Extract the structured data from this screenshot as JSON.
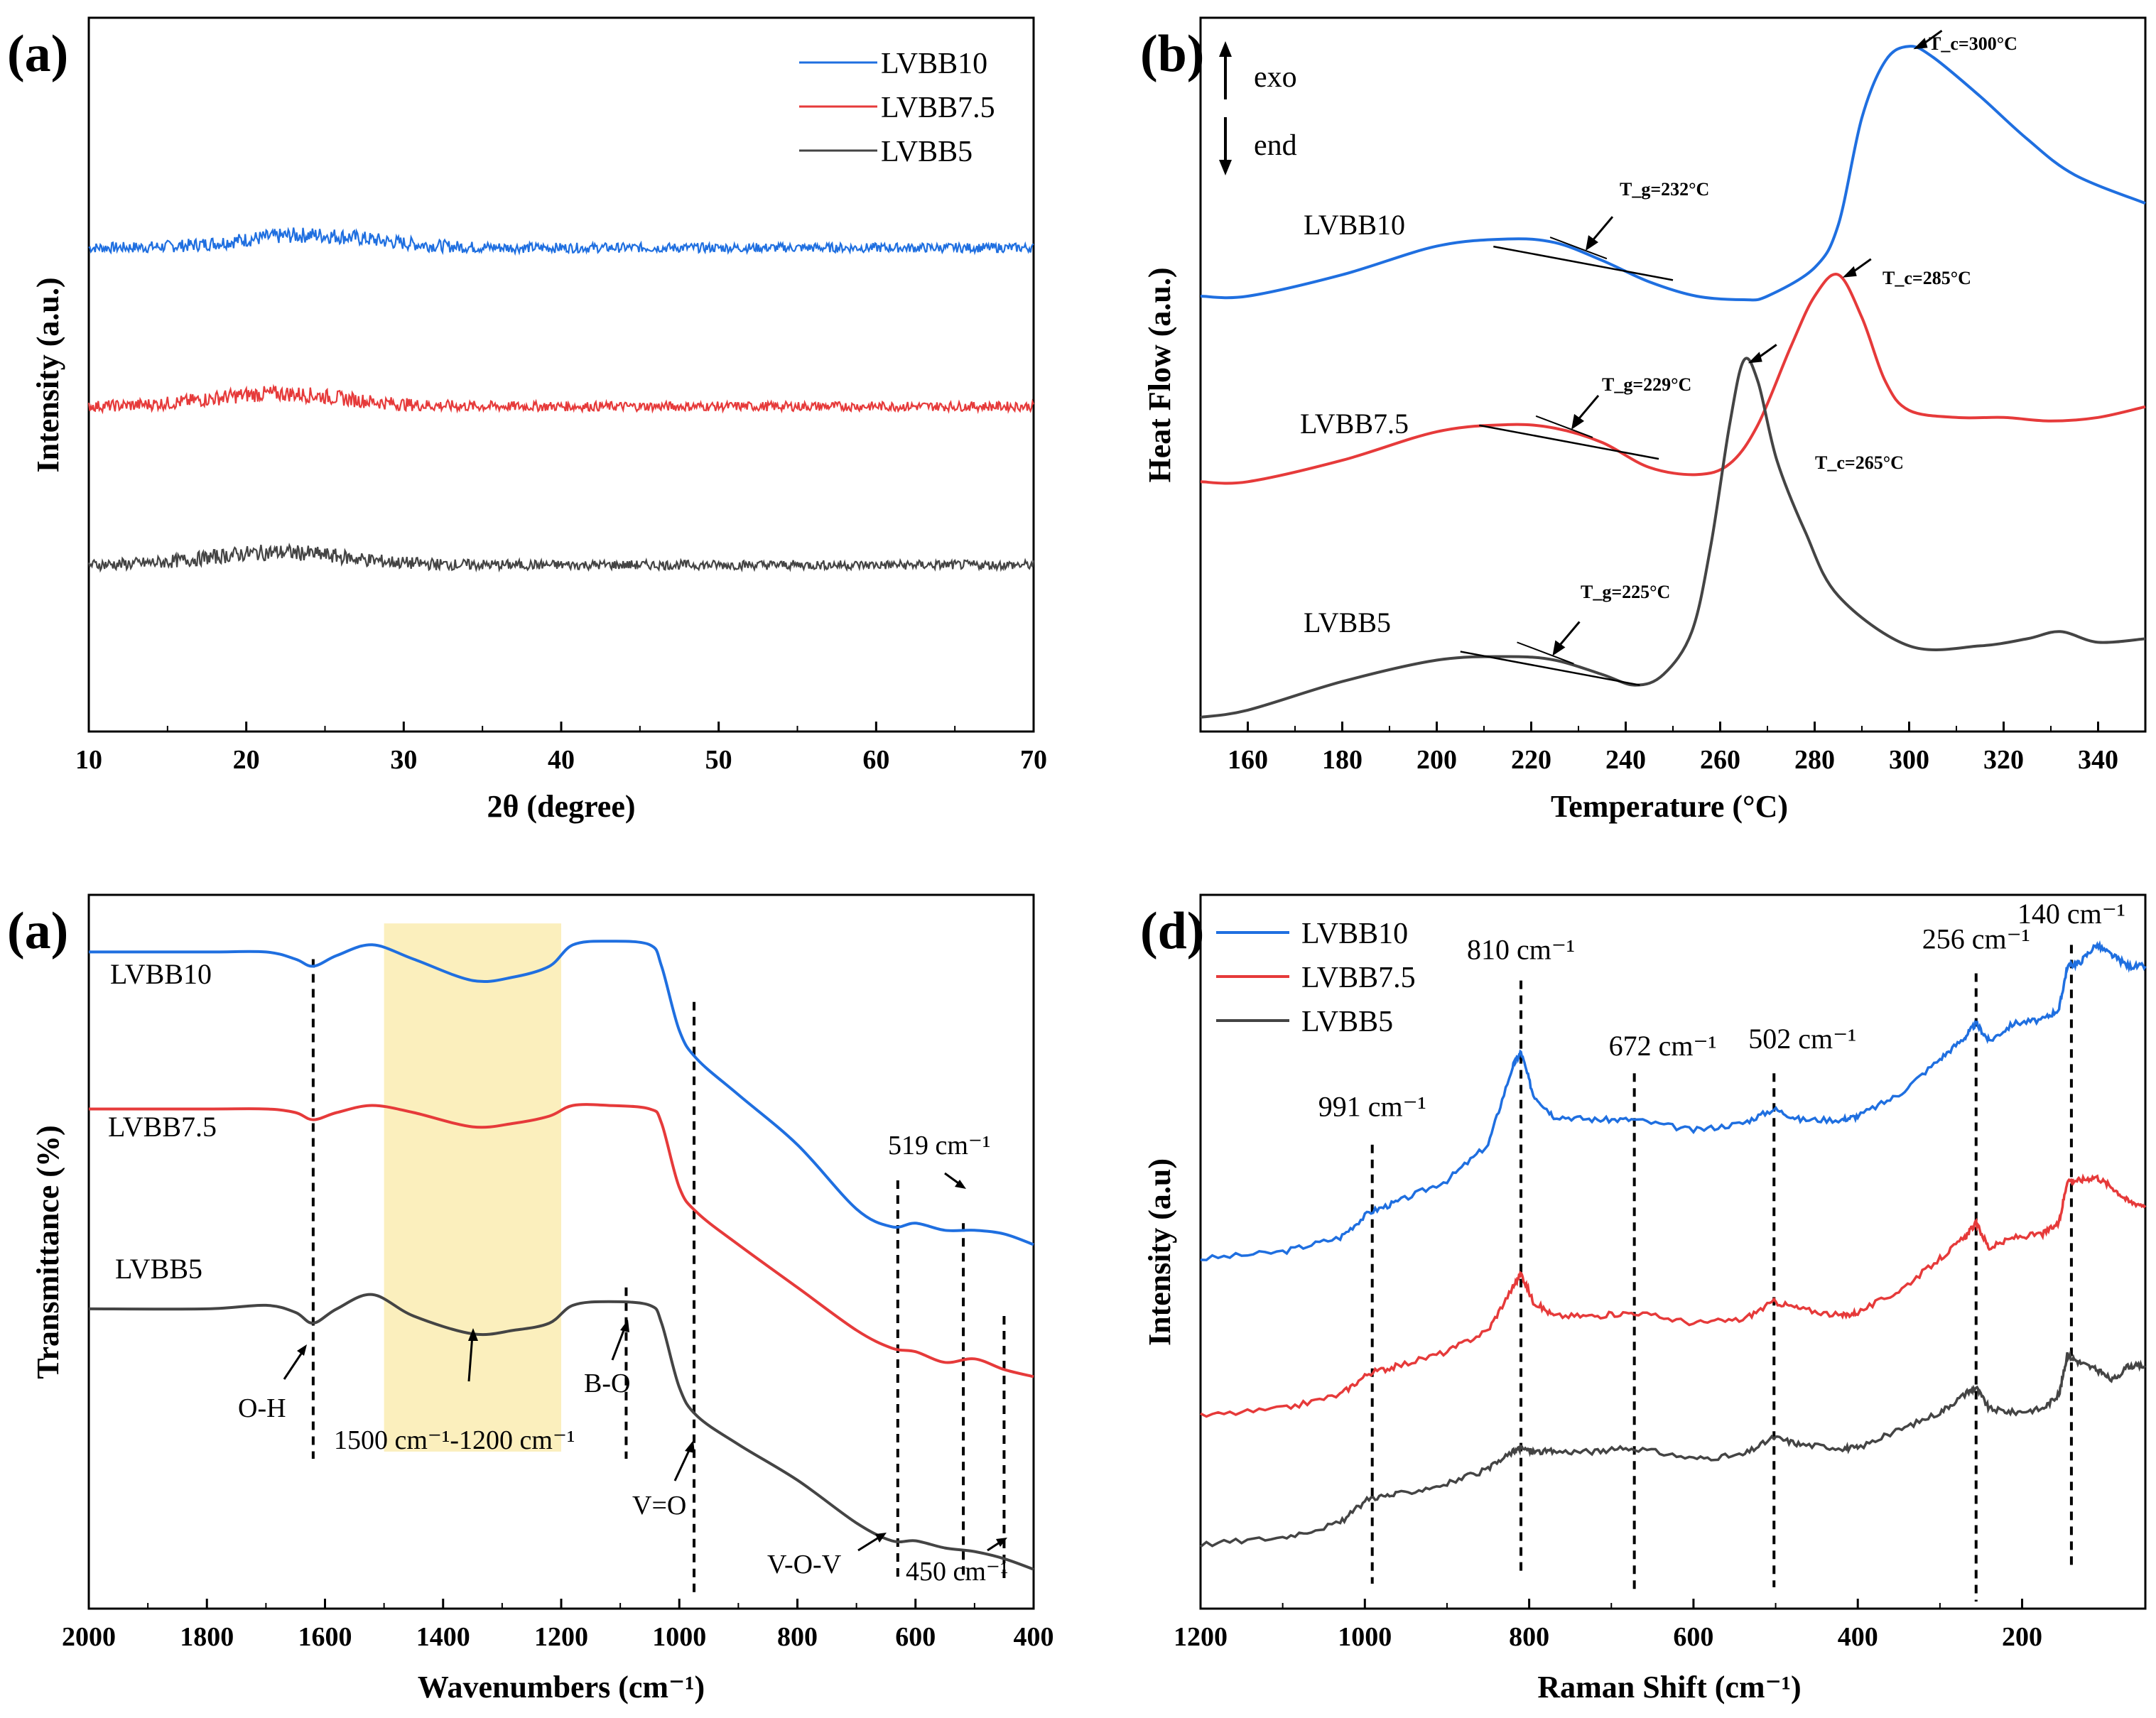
{
  "colors": {
    "LVBB10": "#1f6fe0",
    "LVBB7.5": "#e63a3a",
    "LVBB5": "#444444",
    "band": "#fbefbd"
  },
  "chart_data": [
    {
      "type": "line",
      "panel": "(a)",
      "title": "",
      "xlabel": "2θ (degree)",
      "ylabel": "Intensity (a.u.)",
      "xlim": [
        10,
        70
      ],
      "ylim": [
        0,
        4.5
      ],
      "xticks": [
        10,
        20,
        30,
        40,
        50,
        60,
        70
      ],
      "xtick_labels": [
        "10",
        "20",
        "30",
        "40",
        "50",
        "60",
        "70"
      ],
      "legend": [
        "LVBB10",
        "LVBB7.5",
        "LVBB5"
      ],
      "legend_position": "top-right",
      "series": [
        {
          "name": "LVBB10",
          "baseline": 3.05,
          "bump": 0.08,
          "bump_center": 24,
          "noise": 0.05
        },
        {
          "name": "LVBB7.5",
          "baseline": 2.05,
          "bump": 0.08,
          "bump_center": 22,
          "noise": 0.05
        },
        {
          "name": "LVBB5",
          "baseline": 1.05,
          "bump": 0.08,
          "bump_center": 22,
          "noise": 0.05
        }
      ]
    },
    {
      "type": "line",
      "panel": "(b)",
      "xlabel": "Temperature (°C)",
      "ylabel": "Heat Flow (a.u.)",
      "xlim": [
        150,
        350
      ],
      "ylim": [
        0,
        10
      ],
      "xticks": [
        160,
        180,
        200,
        220,
        240,
        260,
        280,
        300,
        320,
        340
      ],
      "xtick_labels": [
        "160",
        "180",
        "200",
        "220",
        "240",
        "260",
        "280",
        "300",
        "320",
        "340"
      ],
      "exo_label": "exo",
      "end_label": "end",
      "series": [
        {
          "name": "LVBB10",
          "x": [
            150,
            160,
            180,
            200,
            215,
            225,
            235,
            245,
            255,
            265,
            270,
            280,
            285,
            290,
            295,
            300,
            305,
            315,
            325,
            335,
            350
          ],
          "y": [
            6.1,
            6.1,
            6.4,
            6.8,
            6.9,
            6.85,
            6.6,
            6.3,
            6.1,
            6.05,
            6.1,
            6.5,
            7.1,
            8.6,
            9.4,
            9.6,
            9.45,
            8.9,
            8.3,
            7.8,
            7.4
          ]
        },
        {
          "name": "LVBB7.5",
          "x": [
            150,
            160,
            180,
            200,
            215,
            225,
            235,
            245,
            255,
            262,
            268,
            275,
            280,
            285,
            290,
            295,
            300,
            310,
            320,
            330,
            340,
            350
          ],
          "y": [
            3.5,
            3.5,
            3.8,
            4.2,
            4.3,
            4.25,
            4.05,
            3.7,
            3.6,
            3.75,
            4.3,
            5.4,
            6.1,
            6.4,
            5.8,
            4.9,
            4.5,
            4.4,
            4.4,
            4.35,
            4.4,
            4.55
          ]
        },
        {
          "name": "LVBB5",
          "x": [
            150,
            160,
            180,
            200,
            215,
            225,
            235,
            242,
            248,
            254,
            258,
            262,
            265,
            268,
            272,
            278,
            285,
            300,
            315,
            325,
            332,
            340,
            350
          ],
          "y": [
            0.2,
            0.3,
            0.7,
            1.0,
            1.05,
            1.0,
            0.8,
            0.65,
            0.8,
            1.4,
            2.6,
            4.3,
            5.2,
            4.9,
            3.8,
            2.8,
            1.9,
            1.2,
            1.2,
            1.3,
            1.4,
            1.25,
            1.3
          ]
        }
      ],
      "tg_labels": [
        "T_g=232°C",
        "T_g=229°C",
        "T_g=225°C"
      ],
      "tc_labels": [
        "T_c=300°C",
        "T_c=285°C",
        "T_c=265°C"
      ]
    },
    {
      "type": "line",
      "panel": "(a)",
      "xlabel": "Wavenumbers (cm⁻¹)",
      "ylabel": "Transmittance (%)",
      "xlim": [
        2000,
        400
      ],
      "ylim": [
        0,
        10
      ],
      "xticks": [
        2000,
        1800,
        1600,
        1400,
        1200,
        1000,
        800,
        600,
        400
      ],
      "xtick_labels": [
        "2000",
        "1800",
        "1600",
        "1400",
        "1200",
        "1000",
        "800",
        "600",
        "400"
      ],
      "band": [
        1500,
        1200
      ],
      "series": [
        {
          "name": "LVBB10",
          "x": [
            2000,
            1800,
            1700,
            1650,
            1620,
            1580,
            1520,
            1450,
            1350,
            1280,
            1220,
            1180,
            1120,
            1050,
            1030,
            1000,
            970,
            900,
            800,
            700,
            640,
            600,
            550,
            500,
            450,
            400
          ],
          "y": [
            9.2,
            9.2,
            9.2,
            9.1,
            9.0,
            9.15,
            9.3,
            9.1,
            8.8,
            8.85,
            9.0,
            9.3,
            9.35,
            9.3,
            9.0,
            8.1,
            7.7,
            7.2,
            6.5,
            5.6,
            5.35,
            5.4,
            5.3,
            5.3,
            5.25,
            5.1
          ]
        },
        {
          "name": "LVBB7.5",
          "x": [
            2000,
            1800,
            1700,
            1650,
            1620,
            1580,
            1520,
            1450,
            1350,
            1280,
            1220,
            1180,
            1120,
            1050,
            1030,
            1000,
            970,
            900,
            800,
            700,
            640,
            600,
            550,
            500,
            450,
            400
          ],
          "y": [
            7.0,
            7.0,
            7.0,
            6.95,
            6.85,
            6.95,
            7.05,
            6.95,
            6.75,
            6.8,
            6.9,
            7.05,
            7.05,
            7.0,
            6.8,
            5.9,
            5.55,
            5.1,
            4.5,
            3.9,
            3.65,
            3.6,
            3.45,
            3.5,
            3.35,
            3.25
          ]
        },
        {
          "name": "LVBB5",
          "x": [
            2000,
            1800,
            1700,
            1650,
            1620,
            1580,
            1520,
            1450,
            1350,
            1280,
            1220,
            1180,
            1120,
            1050,
            1030,
            1000,
            970,
            900,
            800,
            700,
            640,
            600,
            550,
            500,
            450,
            400
          ],
          "y": [
            4.2,
            4.2,
            4.25,
            4.15,
            4.0,
            4.2,
            4.4,
            4.1,
            3.85,
            3.9,
            4.0,
            4.25,
            4.3,
            4.25,
            4.0,
            3.1,
            2.7,
            2.3,
            1.8,
            1.2,
            0.95,
            0.95,
            0.85,
            0.8,
            0.7,
            0.55
          ]
        }
      ],
      "vlines": [
        1620,
        1090,
        975,
        630,
        519,
        450
      ],
      "annotations": {
        "oh": "O-H",
        "band_range": "1500 cm⁻¹-1200 cm⁻¹",
        "bo": "B-O",
        "vo": "V=O",
        "vov": "V-O-V",
        "p450": "450 cm⁻¹",
        "p519": "519 cm⁻¹"
      }
    },
    {
      "type": "line",
      "panel": "(d)",
      "xlabel": "Raman Shift (cm⁻¹)",
      "ylabel": "Intensity (a.u)",
      "xlim": [
        1200,
        50
      ],
      "ylim": [
        0,
        10
      ],
      "xticks": [
        1200,
        1000,
        800,
        600,
        400,
        200
      ],
      "xtick_labels": [
        "1200",
        "1000",
        "800",
        "600",
        "400",
        "200"
      ],
      "legend": [
        "LVBB10",
        "LVBB7.5",
        "LVBB5"
      ],
      "legend_position": "top-left",
      "series": [
        {
          "name": "LVBB10",
          "x": [
            1200,
            1100,
            1030,
            995,
            960,
            900,
            850,
            820,
            810,
            795,
            770,
            720,
            672,
            600,
            540,
            502,
            470,
            420,
            400,
            350,
            300,
            270,
            256,
            240,
            210,
            175,
            155,
            145,
            130,
            110,
            90,
            70,
            50
          ],
          "y": [
            4.9,
            5.0,
            5.2,
            5.55,
            5.7,
            6.0,
            6.5,
            7.6,
            7.8,
            7.2,
            6.9,
            6.85,
            6.85,
            6.7,
            6.8,
            7.0,
            6.85,
            6.85,
            6.9,
            7.2,
            7.7,
            8.0,
            8.2,
            7.95,
            8.2,
            8.25,
            8.4,
            9.0,
            9.05,
            9.3,
            9.15,
            9.0,
            9.0
          ]
        },
        {
          "name": "LVBB7.5",
          "x": [
            1200,
            1100,
            1030,
            995,
            960,
            900,
            850,
            820,
            810,
            795,
            770,
            720,
            672,
            600,
            540,
            502,
            470,
            420,
            400,
            350,
            300,
            270,
            256,
            240,
            210,
            175,
            155,
            145,
            130,
            110,
            90,
            70,
            50
          ],
          "y": [
            2.7,
            2.8,
            3.0,
            3.3,
            3.4,
            3.6,
            3.9,
            4.5,
            4.7,
            4.3,
            4.1,
            4.1,
            4.15,
            4.0,
            4.05,
            4.3,
            4.2,
            4.1,
            4.15,
            4.45,
            4.9,
            5.2,
            5.4,
            5.05,
            5.2,
            5.25,
            5.4,
            6.0,
            6.0,
            6.05,
            5.9,
            5.7,
            5.65
          ]
        },
        {
          "name": "LVBB5",
          "x": [
            1200,
            1100,
            1030,
            995,
            960,
            900,
            850,
            820,
            810,
            795,
            770,
            720,
            672,
            600,
            540,
            502,
            470,
            420,
            400,
            350,
            300,
            270,
            256,
            240,
            210,
            175,
            155,
            145,
            130,
            110,
            90,
            70,
            50
          ],
          "y": [
            0.9,
            1.0,
            1.2,
            1.55,
            1.6,
            1.75,
            1.95,
            2.2,
            2.25,
            2.2,
            2.2,
            2.2,
            2.25,
            2.1,
            2.15,
            2.4,
            2.3,
            2.25,
            2.25,
            2.5,
            2.75,
            3.0,
            3.1,
            2.8,
            2.75,
            2.8,
            3.0,
            3.55,
            3.45,
            3.35,
            3.2,
            3.4,
            3.4
          ]
        }
      ],
      "peaks": [
        {
          "x": 991,
          "label": "991 cm⁻¹"
        },
        {
          "x": 810,
          "label": "810 cm⁻¹"
        },
        {
          "x": 672,
          "label": "672 cm⁻¹"
        },
        {
          "x": 502,
          "label": "502 cm⁻¹"
        },
        {
          "x": 256,
          "label": "256 cm⁻¹"
        },
        {
          "x": 140,
          "label": "140 cm⁻¹"
        }
      ]
    }
  ],
  "panels": {
    "a_label": "(a)",
    "b_label": "(b)",
    "c_label": "(a)",
    "d_label": "(d)"
  }
}
